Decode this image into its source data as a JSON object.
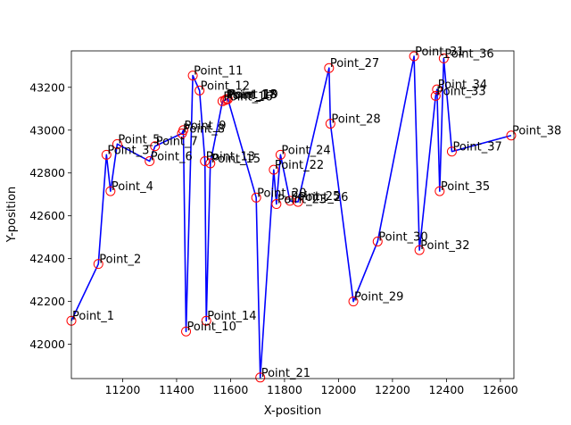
{
  "chart_data": {
    "type": "line",
    "title": "",
    "xlabel": "X-position",
    "ylabel": "Y-position",
    "xlim": [
      11010,
      12650
    ],
    "ylim": [
      41840,
      43370
    ],
    "xticks": [
      11200,
      11400,
      11600,
      11800,
      12000,
      12200,
      12400,
      12600
    ],
    "yticks": [
      42000,
      42200,
      42400,
      42600,
      42800,
      43000,
      43200
    ],
    "line_color": "#0000ff",
    "marker_color": "#ff0000",
    "points": [
      {
        "label": "Point_1",
        "x": 11010,
        "y": 42110
      },
      {
        "label": "Point_2",
        "x": 11110,
        "y": 42375
      },
      {
        "label": "Point_3",
        "x": 11140,
        "y": 42885
      },
      {
        "label": "Point_4",
        "x": 11155,
        "y": 42715
      },
      {
        "label": "Point_5",
        "x": 11180,
        "y": 42935
      },
      {
        "label": "Point_6",
        "x": 11300,
        "y": 42855
      },
      {
        "label": "Point_7",
        "x": 11320,
        "y": 42925
      },
      {
        "label": "Point_8",
        "x": 11420,
        "y": 42985
      },
      {
        "label": "Point_9",
        "x": 11425,
        "y": 43000
      },
      {
        "label": "Point_10",
        "x": 11435,
        "y": 42060
      },
      {
        "label": "Point_11",
        "x": 11460,
        "y": 43255
      },
      {
        "label": "Point_12",
        "x": 11485,
        "y": 43185
      },
      {
        "label": "Point_13",
        "x": 11505,
        "y": 42855
      },
      {
        "label": "Point_14",
        "x": 11510,
        "y": 42110
      },
      {
        "label": "Point_15",
        "x": 11525,
        "y": 42845
      },
      {
        "label": "Point_16",
        "x": 11570,
        "y": 43135
      },
      {
        "label": "Point_17",
        "x": 11580,
        "y": 43140
      },
      {
        "label": "Point_18",
        "x": 11585,
        "y": 43145
      },
      {
        "label": "Point_19",
        "x": 11590,
        "y": 43145
      },
      {
        "label": "Point_20",
        "x": 11695,
        "y": 42685
      },
      {
        "label": "Point_21",
        "x": 11710,
        "y": 41845
      },
      {
        "label": "Point_22",
        "x": 11760,
        "y": 42815
      },
      {
        "label": "Point_23",
        "x": 11770,
        "y": 42655
      },
      {
        "label": "Point_24",
        "x": 11785,
        "y": 42885
      },
      {
        "label": "Point_25",
        "x": 11820,
        "y": 42670
      },
      {
        "label": "Point_26",
        "x": 11850,
        "y": 42665
      },
      {
        "label": "Point_27",
        "x": 11965,
        "y": 43290
      },
      {
        "label": "Point_28",
        "x": 11970,
        "y": 43030
      },
      {
        "label": "Point_29",
        "x": 12055,
        "y": 42200
      },
      {
        "label": "Point_30",
        "x": 12145,
        "y": 42480
      },
      {
        "label": "Point_31",
        "x": 12280,
        "y": 43345
      },
      {
        "label": "Point_32",
        "x": 12300,
        "y": 42440
      },
      {
        "label": "Point_33",
        "x": 12360,
        "y": 43160
      },
      {
        "label": "Point_34",
        "x": 12365,
        "y": 43190
      },
      {
        "label": "Point_35",
        "x": 12375,
        "y": 42715
      },
      {
        "label": "Point_36",
        "x": 12390,
        "y": 43335
      },
      {
        "label": "Point_37",
        "x": 12420,
        "y": 42900
      },
      {
        "label": "Point_38",
        "x": 12640,
        "y": 42975
      }
    ]
  }
}
